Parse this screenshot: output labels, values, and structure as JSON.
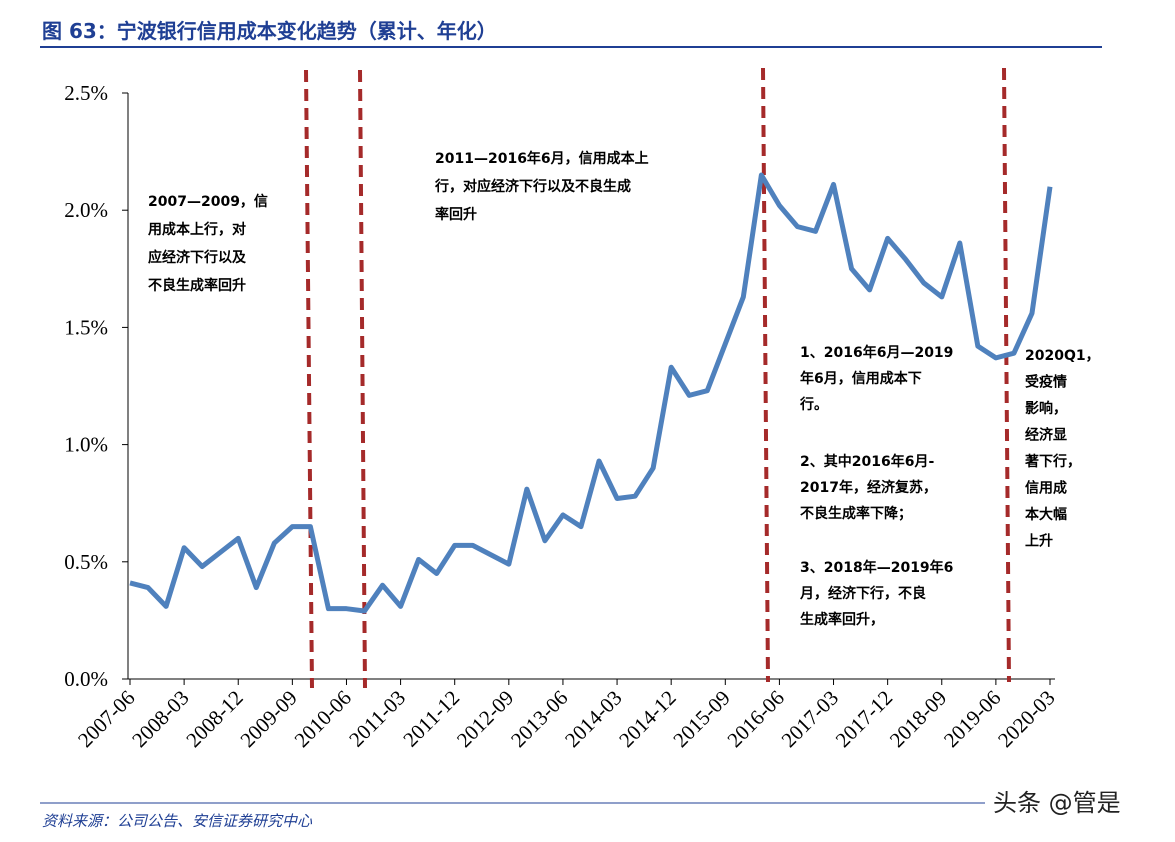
{
  "chart_data": {
    "type": "line",
    "title": "图 63：宁波银行信用成本变化趋势（累计、年化）",
    "categories": [
      "2007-06",
      null,
      null,
      "2008-03",
      null,
      null,
      "2008-12",
      null,
      null,
      "2009-09",
      null,
      null,
      "2010-06",
      null,
      null,
      "2011-03",
      null,
      null,
      "2011-12",
      null,
      null,
      "2012-09",
      null,
      null,
      "2013-06",
      null,
      null,
      "2014-03",
      null,
      null,
      "2014-12",
      null,
      null,
      "2015-09",
      null,
      null,
      "2016-06",
      null,
      null,
      "2017-03",
      null,
      null,
      "2017-12",
      null,
      null,
      "2018-09",
      null,
      null,
      "2019-06",
      null,
      null,
      "2020-03"
    ],
    "series": [
      {
        "color": "#4f81bd",
        "values": [
          0.41,
          0.39,
          0.31,
          0.56,
          0.48,
          0.54,
          0.6,
          0.39,
          0.58,
          0.65,
          0.65,
          0.3,
          0.3,
          0.29,
          0.4,
          0.31,
          0.51,
          0.45,
          0.57,
          0.57,
          0.53,
          0.49,
          0.81,
          0.59,
          0.7,
          0.65,
          0.93,
          0.77,
          0.78,
          0.9,
          1.33,
          1.21,
          1.23,
          1.43,
          1.63,
          2.15,
          2.02,
          1.93,
          1.91,
          2.11,
          1.75,
          1.66,
          1.88,
          1.79,
          1.69,
          1.63,
          1.86,
          1.42,
          1.37,
          1.39,
          1.56,
          2.1
        ]
      }
    ],
    "ylim": [
      0,
      2.5
    ],
    "yticks": [
      {
        "value": 0,
        "label": "0.0%"
      },
      {
        "value": 0.5,
        "label": "0.5%"
      },
      {
        "value": 1,
        "label": "1.0%"
      },
      {
        "value": 1.5,
        "label": "1.5%"
      },
      {
        "value": 2,
        "label": "2.0%"
      },
      {
        "value": 2.5,
        "label": "2.5%"
      }
    ],
    "annotations": [
      {
        "lines": [
          "2007—2009，信",
          "用成本上行，对",
          "应经济下行以及",
          "不良生成率回升"
        ]
      },
      {
        "lines": [
          "2011—2016年6月，信用成本上",
          "行，对应经济下行以及不良生成",
          "率回升"
        ]
      },
      {
        "lines": [
          "1、2016年6月—2019",
          "年6月，信用成本下",
          "行。"
        ]
      },
      {
        "lines": [
          "2、其中2016年6月-",
          "2017年，经济复苏，",
          "不良生成率下降；"
        ]
      },
      {
        "lines": [
          "3、2018年—2019年6",
          "月，经济下行，不良",
          "生成率回升，"
        ]
      },
      {
        "lines": [
          "2020Q1，",
          "受疫情",
          "影响，",
          "经济显",
          "著下行，",
          "信用成",
          "本大幅",
          "上升"
        ]
      }
    ],
    "source": "资料来源：公司公告、安信证券研究中心",
    "watermark": "头条 @管是"
  }
}
